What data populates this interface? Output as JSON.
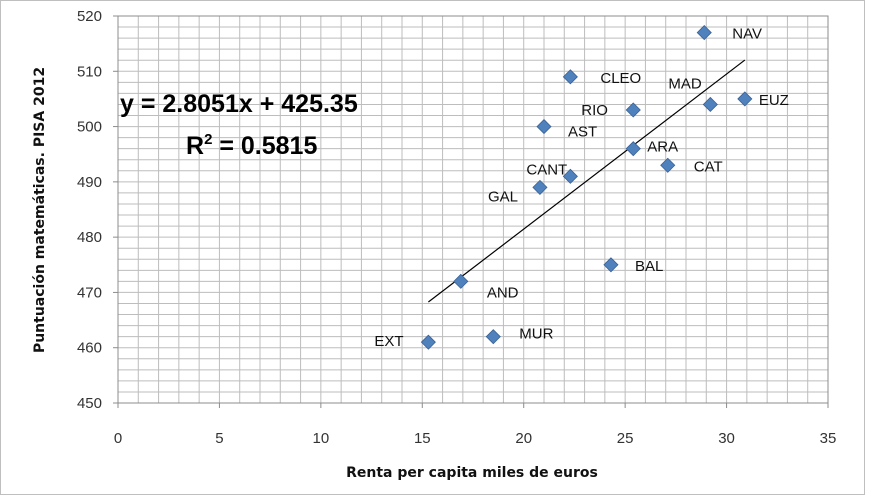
{
  "chart_data": {
    "type": "scatter",
    "title": "",
    "xlabel": "Renta per capita  miles de euros",
    "ylabel": "Puntuación  matemáticas.  PISA  2012",
    "xlim": [
      0,
      35
    ],
    "ylim": [
      450,
      520
    ],
    "xticks": [
      0,
      5,
      10,
      15,
      20,
      25,
      30,
      35
    ],
    "yticks": [
      450,
      460,
      470,
      480,
      490,
      500,
      510,
      520
    ],
    "grid": true,
    "marker_color": "#4F81BD",
    "points": [
      {
        "label": "NAV",
        "x": 28.9,
        "y": 517
      },
      {
        "label": "CLEO",
        "x": 22.3,
        "y": 509
      },
      {
        "label": "MAD",
        "x": 29.2,
        "y": 504
      },
      {
        "label": "EUZ",
        "x": 30.9,
        "y": 505
      },
      {
        "label": "RIO",
        "x": 25.4,
        "y": 503
      },
      {
        "label": "AST",
        "x": 21.0,
        "y": 500
      },
      {
        "label": "ARA",
        "x": 25.4,
        "y": 496
      },
      {
        "label": "CAT",
        "x": 27.1,
        "y": 493
      },
      {
        "label": "CANT",
        "x": 22.3,
        "y": 491
      },
      {
        "label": "GAL",
        "x": 20.8,
        "y": 489
      },
      {
        "label": "BAL",
        "x": 24.3,
        "y": 475
      },
      {
        "label": "AND",
        "x": 16.9,
        "y": 472
      },
      {
        "label": "MUR",
        "x": 18.5,
        "y": 462
      },
      {
        "label": "EXT",
        "x": 15.3,
        "y": 461
      }
    ],
    "trendline": {
      "slope": 2.8051,
      "intercept": 425.35,
      "x_range": [
        15.3,
        30.9
      ],
      "equation": "y = 2.8051x + 425.35",
      "r2_prefix": "R",
      "r2_sup": "2",
      "r2_value": " = 0.5815"
    }
  }
}
